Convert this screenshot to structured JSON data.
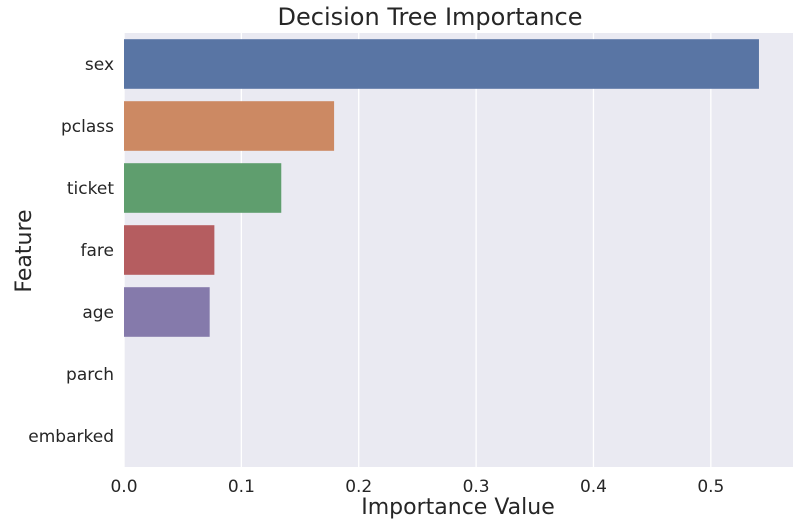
{
  "chart_data": {
    "type": "bar",
    "orientation": "horizontal",
    "title": "Decision Tree Importance",
    "xlabel": "Importance Value",
    "ylabel": "Feature",
    "categories": [
      "sex",
      "pclass",
      "ticket",
      "fare",
      "age",
      "parch",
      "embarked"
    ],
    "values": [
      0.541,
      0.179,
      0.134,
      0.077,
      0.073,
      0.0,
      0.0
    ],
    "xlim": [
      0,
      0.57
    ],
    "x_ticks": [
      "0.0",
      "0.1",
      "0.2",
      "0.3",
      "0.4",
      "0.5"
    ],
    "x_tick_values": [
      0,
      0.1,
      0.2,
      0.3,
      0.4,
      0.5
    ],
    "grid": true,
    "colors": [
      "#5975a4",
      "#cc8963",
      "#5f9e6e",
      "#b55d60",
      "#857aab",
      "#8d7866",
      "#d095bf"
    ],
    "background": "#eaeaf2"
  }
}
